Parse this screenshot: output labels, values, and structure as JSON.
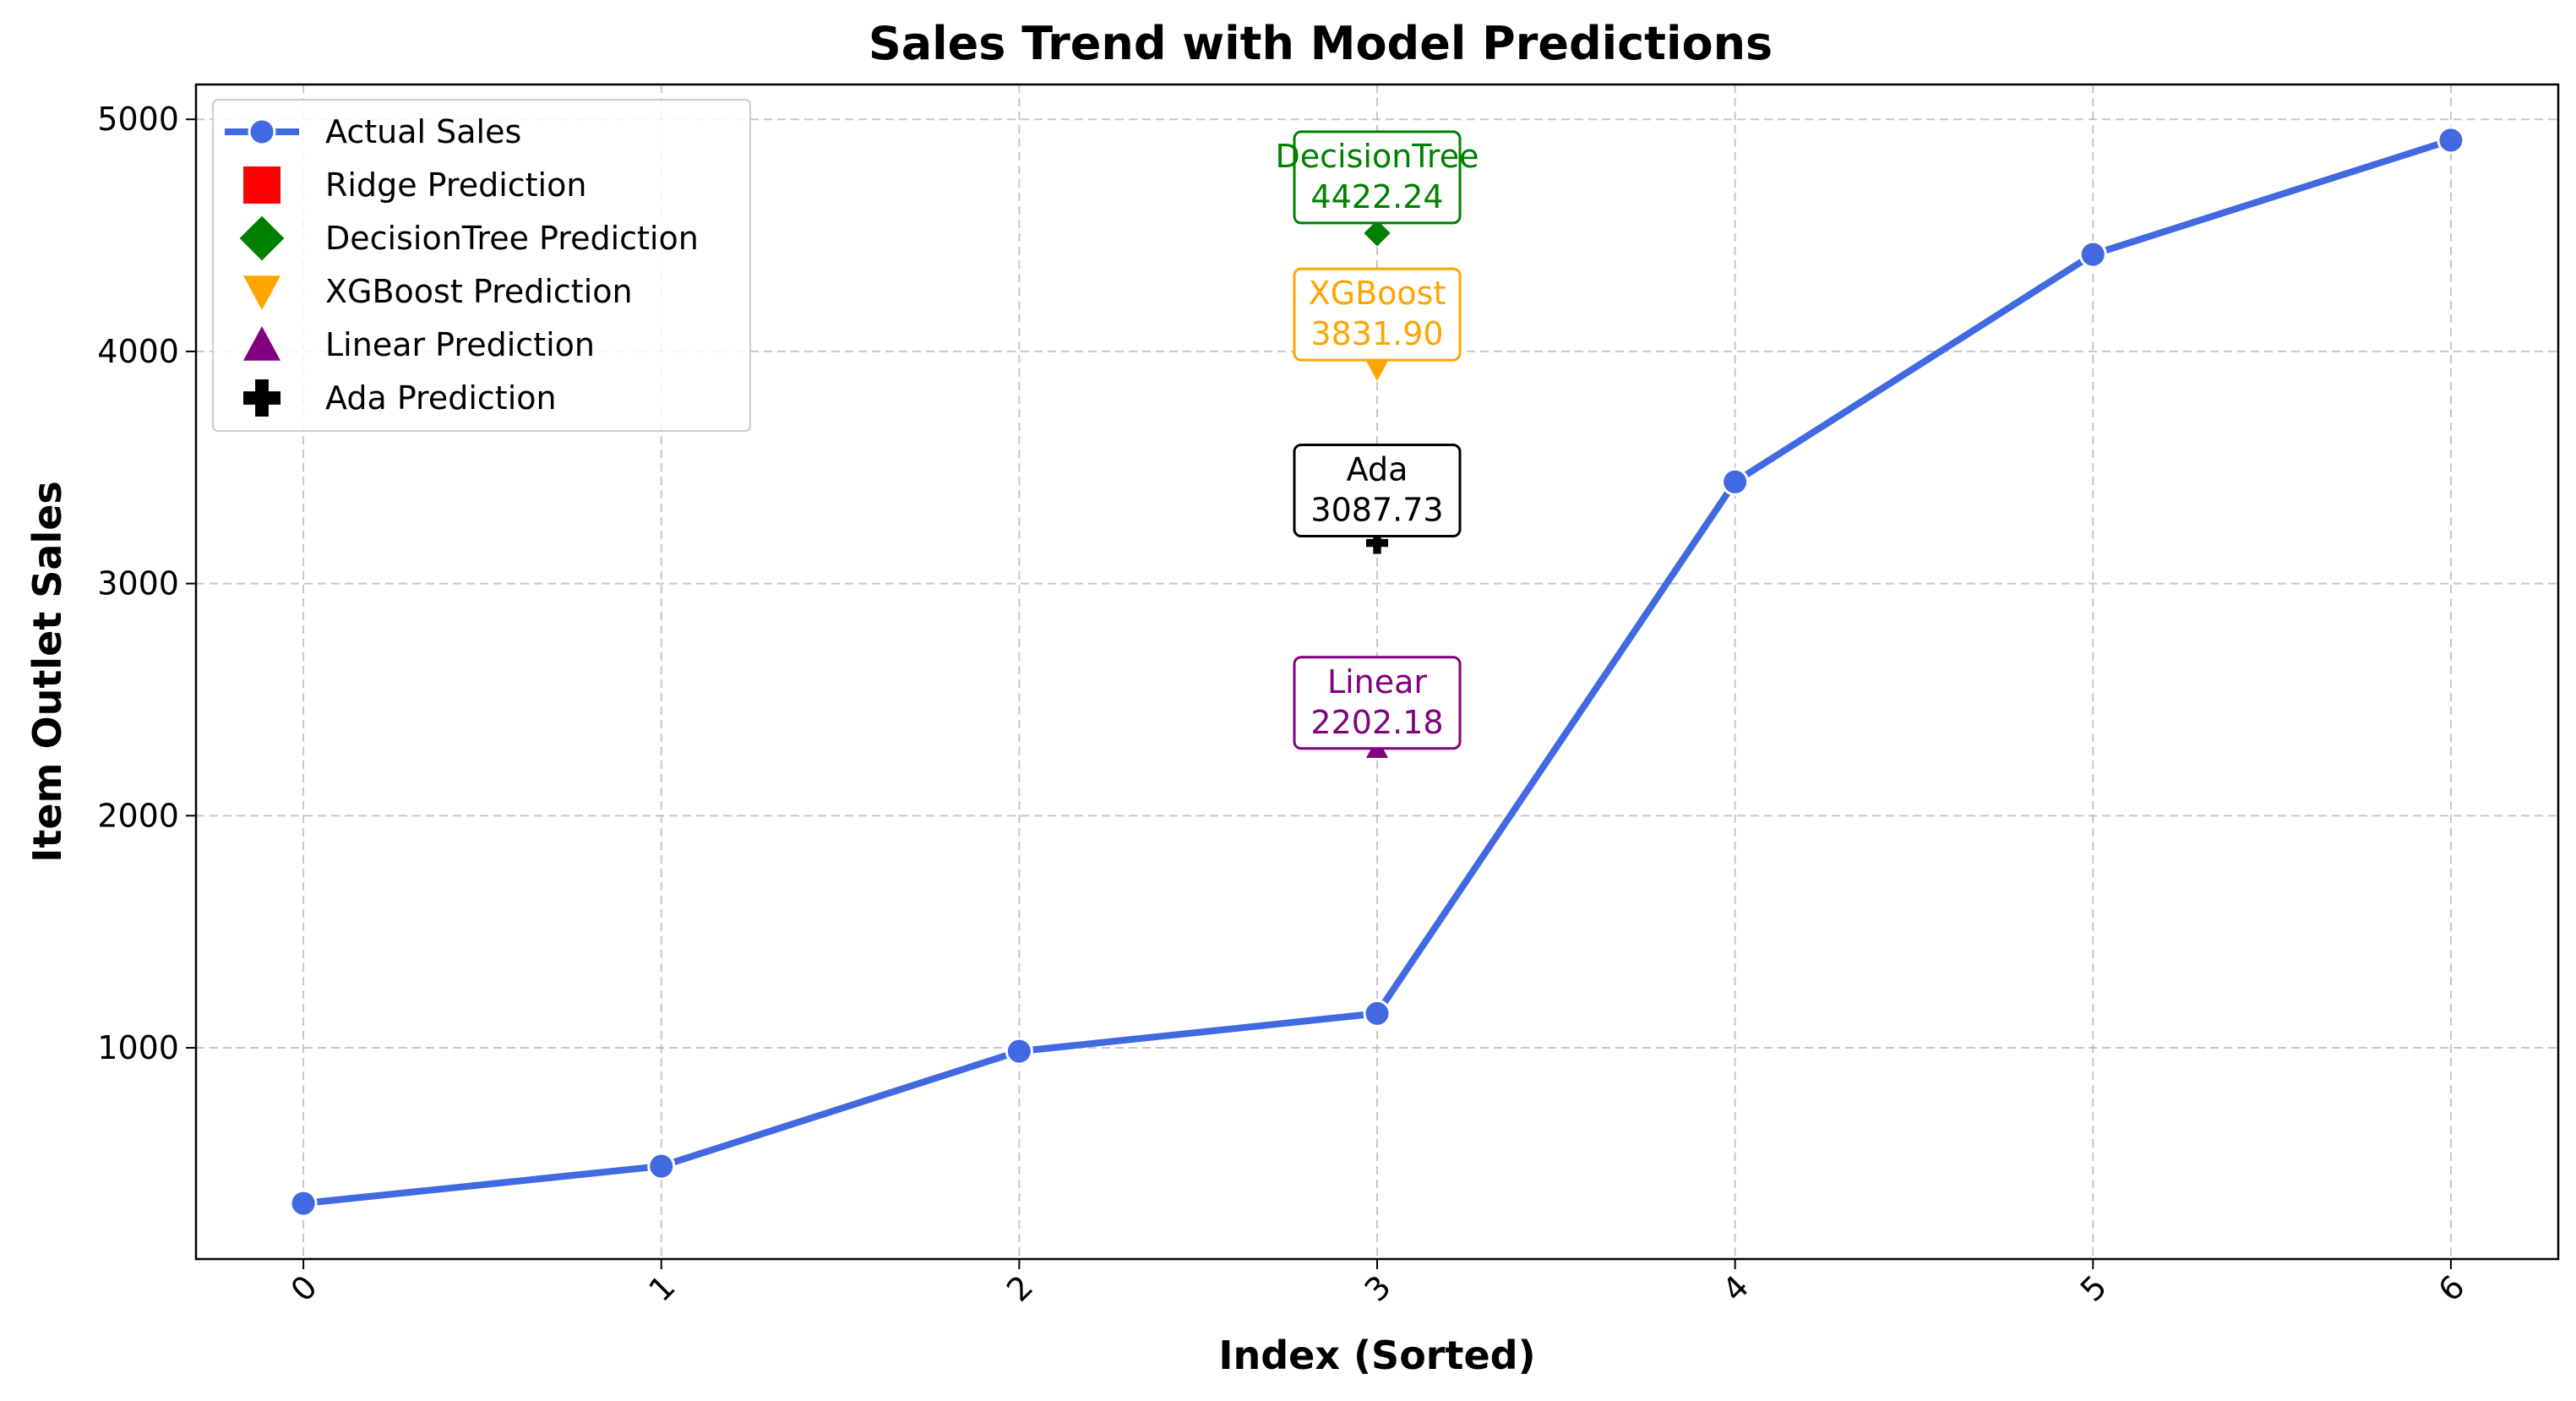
{
  "chart_data": {
    "type": "line",
    "title": "Sales Trend with Model Predictions",
    "xlabel": "Index (Sorted)",
    "ylabel": "Item Outlet Sales",
    "x": [
      0,
      1,
      2,
      3,
      4,
      5,
      6
    ],
    "xlim": [
      -0.3,
      6.3
    ],
    "ylim": [
      90,
      5150
    ],
    "x_ticks": [
      "0",
      "1",
      "2",
      "3",
      "4",
      "5",
      "6"
    ],
    "y_ticks": [
      1000,
      2000,
      3000,
      4000,
      5000
    ],
    "grid": true,
    "legend_position": "upper-left",
    "series": [
      {
        "name": "Actual Sales",
        "kind": "line",
        "color": "#4169E1",
        "values": [
          330,
          490,
          985,
          1148,
          3438,
          4418,
          4910
        ]
      }
    ],
    "predictions": [
      {
        "model": "Ridge",
        "legend": "Ridge Prediction",
        "x": 3,
        "value": null,
        "color": "#FF0000",
        "marker": "square"
      },
      {
        "model": "DecisionTree",
        "legend": "DecisionTree Prediction",
        "x": 3,
        "value": 4422.24,
        "label": "4422.24",
        "color": "#008000",
        "marker": "diamond"
      },
      {
        "model": "XGBoost",
        "legend": "XGBoost Prediction",
        "x": 3,
        "value": 3831.9,
        "label": "3831.90",
        "color": "#FFA500",
        "marker": "triangle-down"
      },
      {
        "model": "Linear",
        "legend": "Linear Prediction",
        "x": 3,
        "value": 2202.18,
        "label": "2202.18",
        "color": "#800080",
        "marker": "triangle-up"
      },
      {
        "model": "Ada",
        "legend": "Ada Prediction",
        "x": 3,
        "value": 3087.73,
        "label": "3087.73",
        "color": "#000000",
        "marker": "plus"
      }
    ]
  }
}
